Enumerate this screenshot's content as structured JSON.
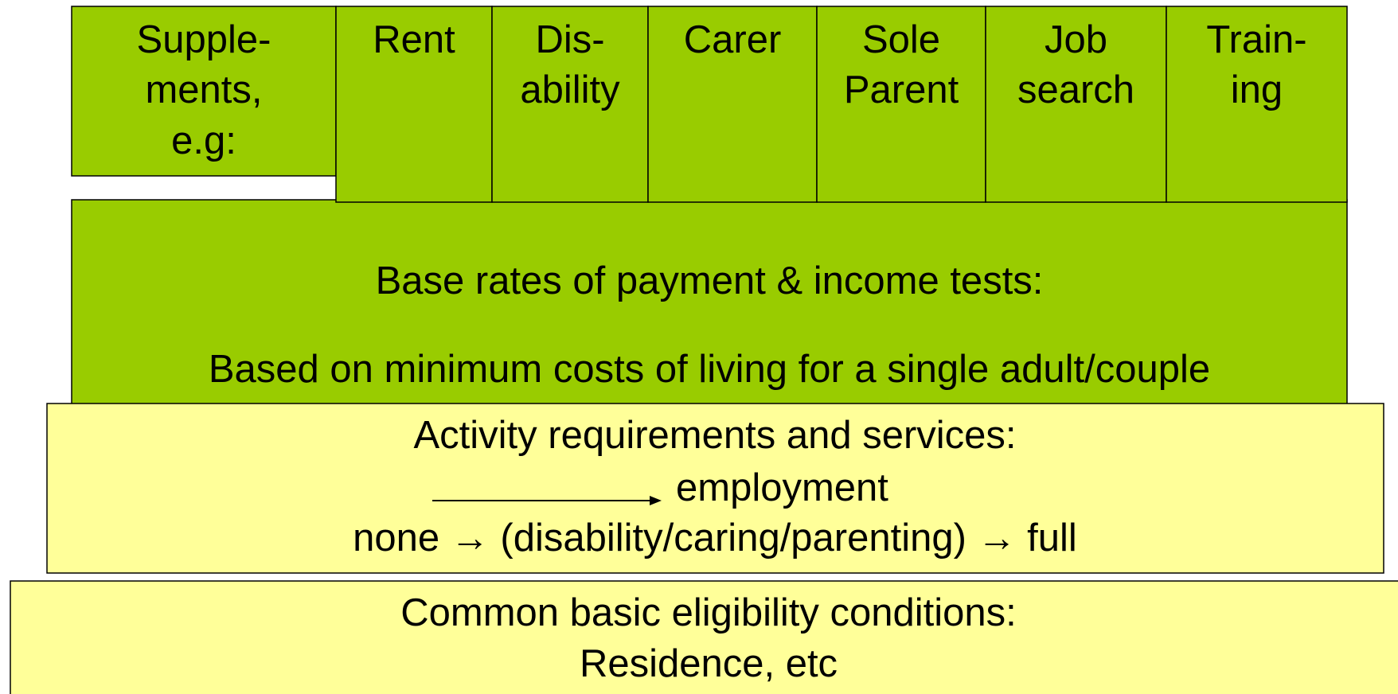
{
  "supplements": {
    "label": [
      "Supple-",
      "ments,",
      "e.g:"
    ],
    "items": [
      {
        "label": [
          "Rent"
        ]
      },
      {
        "label": [
          "Dis-",
          "ability"
        ]
      },
      {
        "label": [
          "Carer"
        ]
      },
      {
        "label": [
          "Sole",
          "Parent"
        ]
      },
      {
        "label": [
          "Job",
          "search"
        ]
      },
      {
        "label": [
          "Train-",
          "ing"
        ]
      }
    ]
  },
  "base": {
    "title": "Base rates of payment & income tests:",
    "text": "Based on minimum costs of living for a single adult/couple"
  },
  "activity": {
    "title": "Activity requirements and services:",
    "arrow_label": "employment",
    "text": "none → (disability/caring/parenting) → full"
  },
  "eligibility": {
    "title": "Common basic eligibility conditions:",
    "text": "Residence, etc"
  }
}
